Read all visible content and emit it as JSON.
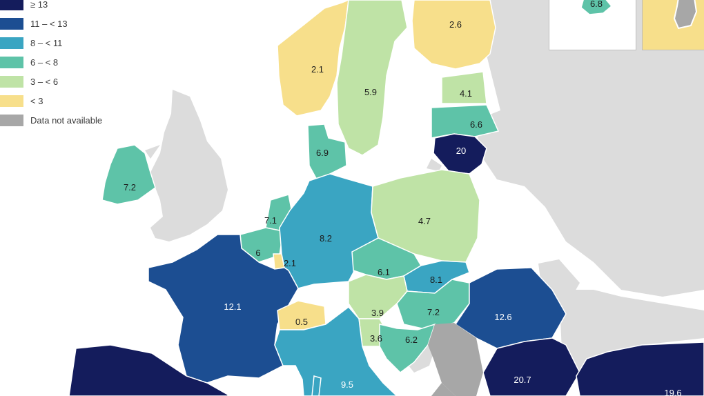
{
  "colors": {
    "c_ge13": "#141c5c",
    "c_11_13": "#1c4e92",
    "c_8_11": "#3aa5c2",
    "c_6_8": "#5ec3a8",
    "c_3_6": "#bfe3a6",
    "c_lt3": "#f7df8b",
    "c_na": "#a7a7a7",
    "nonEU": "#dcdcdc",
    "sea": "#ffffff",
    "border": "#ffffff"
  },
  "legend": [
    {
      "label": "≥ 13",
      "colorKey": "c_ge13"
    },
    {
      "label": "11 – < 13",
      "colorKey": "c_11_13"
    },
    {
      "label": "8 – < 11",
      "colorKey": "c_8_11"
    },
    {
      "label": "6 – < 8",
      "colorKey": "c_6_8"
    },
    {
      "label": "3 – < 6",
      "colorKey": "c_3_6"
    },
    {
      "label": "< 3",
      "colorKey": "c_lt3"
    },
    {
      "label": "Data not available",
      "colorKey": "c_na"
    }
  ],
  "regions": [
    {
      "name": "norway",
      "value": "2.1",
      "colorKey": "c_lt3"
    },
    {
      "name": "sweden",
      "value": "5.9",
      "colorKey": "c_3_6"
    },
    {
      "name": "finland",
      "value": "2.6",
      "colorKey": "c_lt3"
    },
    {
      "name": "estonia",
      "value": "4.1",
      "colorKey": "c_3_6"
    },
    {
      "name": "latvia",
      "value": "6.6",
      "colorKey": "c_6_8"
    },
    {
      "name": "lithuania",
      "value": "20",
      "colorKey": "c_ge13"
    },
    {
      "name": "denmark",
      "value": "6.9",
      "colorKey": "c_6_8"
    },
    {
      "name": "ireland",
      "value": "7.2",
      "colorKey": "c_6_8"
    },
    {
      "name": "netherlands",
      "value": "7.1",
      "colorKey": "c_6_8"
    },
    {
      "name": "belgium",
      "value": "6",
      "colorKey": "c_6_8"
    },
    {
      "name": "luxembourg",
      "value": "2.1",
      "colorKey": "c_lt3"
    },
    {
      "name": "germany",
      "value": "8.2",
      "colorKey": "c_8_11"
    },
    {
      "name": "poland",
      "value": "4.7",
      "colorKey": "c_3_6"
    },
    {
      "name": "czechia",
      "value": "6.1",
      "colorKey": "c_6_8"
    },
    {
      "name": "slovakia",
      "value": "8.1",
      "colorKey": "c_8_11"
    },
    {
      "name": "austria",
      "value": "3.9",
      "colorKey": "c_3_6"
    },
    {
      "name": "hungary",
      "value": "7.2",
      "colorKey": "c_6_8"
    },
    {
      "name": "slovenia",
      "value": "3.6",
      "colorKey": "c_3_6"
    },
    {
      "name": "croatia",
      "value": "6.2",
      "colorKey": "c_6_8"
    },
    {
      "name": "romania",
      "value": "12.6",
      "colorKey": "c_11_13"
    },
    {
      "name": "france",
      "value": "12.1",
      "colorKey": "c_11_13"
    },
    {
      "name": "switzerland",
      "value": "0.5",
      "colorKey": "c_lt3"
    },
    {
      "name": "italy",
      "value": "9.5",
      "colorKey": "c_8_11"
    },
    {
      "name": "bulgaria",
      "value": "20.7",
      "colorKey": "c_ge13"
    },
    {
      "name": "turkey",
      "value": "19.6",
      "colorKey": "c_ge13"
    },
    {
      "name": "spain",
      "value": "",
      "colorKey": "c_ge13"
    },
    {
      "name": "malta-inset",
      "value": "6.8",
      "colorKey": "c_6_8"
    }
  ]
}
